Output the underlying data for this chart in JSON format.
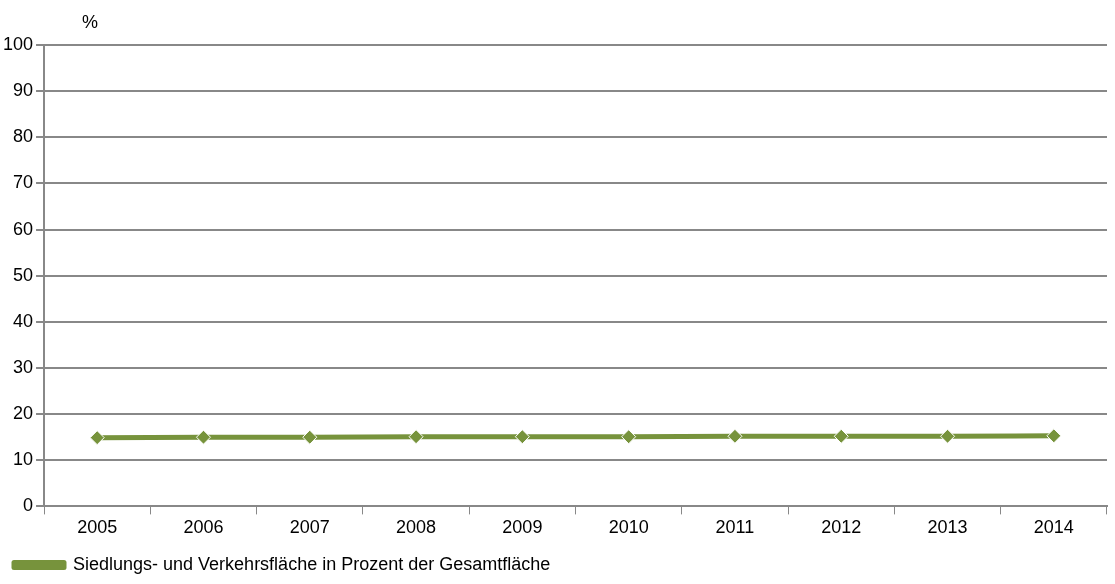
{
  "chart_data": {
    "type": "line",
    "ylabel": "%",
    "categories": [
      "2005",
      "2006",
      "2007",
      "2008",
      "2009",
      "2010",
      "2011",
      "2012",
      "2013",
      "2014"
    ],
    "series": [
      {
        "name": "Siedlungs- und Verkehrsfläche in Prozent der Gesamtfläche",
        "color": "#77933c",
        "values": [
          14.9,
          15.0,
          15.0,
          15.1,
          15.1,
          15.1,
          15.2,
          15.2,
          15.2,
          15.3
        ]
      }
    ],
    "ylim": [
      0,
      100
    ],
    "yticks": [
      0,
      10,
      20,
      30,
      40,
      50,
      60,
      70,
      80,
      90,
      100
    ],
    "grid": "y",
    "legend": "bottom",
    "marker": "diamond",
    "line_style": "solid"
  }
}
